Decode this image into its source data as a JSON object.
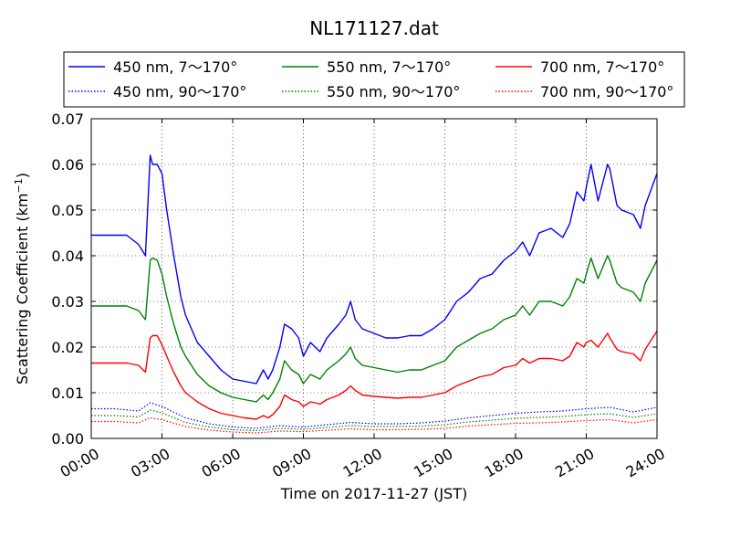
{
  "chart_data": {
    "type": "line",
    "title": "NL171127.dat",
    "xlabel": "Time on 2017-11-27 (JST)",
    "ylabel_main": "Scattering Coefficient (km",
    "ylabel_sup": "−1",
    "ylabel_close": ")",
    "x_unit": "hours",
    "xlim": [
      0,
      24
    ],
    "ylim": [
      0,
      0.07
    ],
    "grid": true,
    "legend_placement": "top",
    "x_ticks": [
      {
        "value": 0,
        "label": "00:00"
      },
      {
        "value": 3,
        "label": "03:00"
      },
      {
        "value": 6,
        "label": "06:00"
      },
      {
        "value": 9,
        "label": "09:00"
      },
      {
        "value": 12,
        "label": "12:00"
      },
      {
        "value": 15,
        "label": "15:00"
      },
      {
        "value": 18,
        "label": "18:00"
      },
      {
        "value": 21,
        "label": "21:00"
      },
      {
        "value": 24,
        "label": "24:00"
      }
    ],
    "y_ticks": [
      {
        "value": 0.0,
        "label": "0.00"
      },
      {
        "value": 0.01,
        "label": "0.01"
      },
      {
        "value": 0.02,
        "label": "0.02"
      },
      {
        "value": 0.03,
        "label": "0.03"
      },
      {
        "value": 0.04,
        "label": "0.04"
      },
      {
        "value": 0.05,
        "label": "0.05"
      },
      {
        "value": 0.06,
        "label": "0.06"
      },
      {
        "value": 0.07,
        "label": "0.07"
      }
    ],
    "series": [
      {
        "name": "450 nm, 7～170°",
        "color": "#0000ff",
        "style": "solid",
        "x": [
          0,
          0.5,
          1,
          1.5,
          2,
          2.3,
          2.5,
          2.6,
          2.8,
          3,
          3.2,
          3.5,
          3.8,
          4,
          4.5,
          5,
          5.5,
          6,
          6.5,
          7,
          7.3,
          7.5,
          7.7,
          8,
          8.2,
          8.5,
          8.8,
          9,
          9.3,
          9.5,
          9.7,
          10,
          10.5,
          10.8,
          11,
          11.2,
          11.5,
          12,
          12.5,
          13,
          13.5,
          14,
          14.5,
          15,
          15.5,
          16,
          16.5,
          17,
          17.5,
          18,
          18.3,
          18.6,
          19,
          19.5,
          20,
          20.3,
          20.6,
          20.9,
          21,
          21.2,
          21.5,
          21.9,
          22,
          22.3,
          22.5,
          23,
          23.3,
          23.5,
          24
        ],
        "y": [
          0.0445,
          0.0445,
          0.0445,
          0.0445,
          0.0425,
          0.04,
          0.062,
          0.06,
          0.06,
          0.058,
          0.05,
          0.04,
          0.031,
          0.027,
          0.021,
          0.018,
          0.015,
          0.013,
          0.0125,
          0.012,
          0.015,
          0.013,
          0.015,
          0.02,
          0.025,
          0.024,
          0.022,
          0.018,
          0.021,
          0.02,
          0.019,
          0.022,
          0.025,
          0.027,
          0.03,
          0.026,
          0.024,
          0.023,
          0.022,
          0.022,
          0.0225,
          0.0225,
          0.024,
          0.026,
          0.03,
          0.032,
          0.035,
          0.036,
          0.039,
          0.041,
          0.043,
          0.04,
          0.045,
          0.046,
          0.044,
          0.047,
          0.054,
          0.052,
          0.055,
          0.06,
          0.052,
          0.06,
          0.059,
          0.051,
          0.05,
          0.049,
          0.046,
          0.051,
          0.058
        ]
      },
      {
        "name": "550 nm, 7～170°",
        "color": "#008000",
        "style": "solid",
        "x": [
          0,
          0.5,
          1,
          1.5,
          2,
          2.3,
          2.5,
          2.6,
          2.8,
          3,
          3.2,
          3.5,
          3.8,
          4,
          4.5,
          5,
          5.5,
          6,
          6.5,
          7,
          7.3,
          7.5,
          7.7,
          8,
          8.2,
          8.5,
          8.8,
          9,
          9.3,
          9.5,
          9.7,
          10,
          10.5,
          10.8,
          11,
          11.2,
          11.5,
          12,
          12.5,
          13,
          13.5,
          14,
          14.5,
          15,
          15.5,
          16,
          16.5,
          17,
          17.5,
          18,
          18.3,
          18.6,
          19,
          19.5,
          20,
          20.3,
          20.6,
          20.9,
          21,
          21.2,
          21.5,
          21.9,
          22,
          22.3,
          22.5,
          23,
          23.3,
          23.5,
          24
        ],
        "y": [
          0.029,
          0.029,
          0.029,
          0.029,
          0.028,
          0.026,
          0.039,
          0.0395,
          0.039,
          0.036,
          0.031,
          0.025,
          0.02,
          0.018,
          0.014,
          0.0115,
          0.01,
          0.009,
          0.0085,
          0.008,
          0.0095,
          0.0085,
          0.01,
          0.013,
          0.017,
          0.015,
          0.014,
          0.012,
          0.014,
          0.0135,
          0.013,
          0.015,
          0.017,
          0.0185,
          0.02,
          0.0175,
          0.016,
          0.0155,
          0.015,
          0.0145,
          0.015,
          0.015,
          0.016,
          0.017,
          0.02,
          0.0215,
          0.023,
          0.024,
          0.026,
          0.027,
          0.029,
          0.027,
          0.03,
          0.03,
          0.029,
          0.031,
          0.035,
          0.034,
          0.036,
          0.0395,
          0.035,
          0.04,
          0.039,
          0.034,
          0.033,
          0.032,
          0.03,
          0.034,
          0.039
        ]
      },
      {
        "name": "700 nm, 7～170°",
        "color": "#ff0000",
        "style": "solid",
        "x": [
          0,
          0.5,
          1,
          1.5,
          2,
          2.3,
          2.5,
          2.6,
          2.8,
          3,
          3.2,
          3.5,
          3.8,
          4,
          4.5,
          5,
          5.5,
          6,
          6.5,
          7,
          7.3,
          7.5,
          7.7,
          8,
          8.2,
          8.5,
          8.8,
          9,
          9.3,
          9.5,
          9.7,
          10,
          10.5,
          10.8,
          11,
          11.2,
          11.5,
          12,
          12.5,
          13,
          13.5,
          14,
          14.5,
          15,
          15.5,
          16,
          16.5,
          17,
          17.5,
          18,
          18.3,
          18.6,
          19,
          19.5,
          20,
          20.3,
          20.6,
          20.9,
          21,
          21.2,
          21.5,
          21.9,
          22,
          22.3,
          22.5,
          23,
          23.3,
          23.5,
          24
        ],
        "y": [
          0.0165,
          0.0165,
          0.0165,
          0.0165,
          0.016,
          0.0145,
          0.022,
          0.0225,
          0.0225,
          0.0205,
          0.018,
          0.0145,
          0.0115,
          0.01,
          0.008,
          0.0065,
          0.0055,
          0.005,
          0.0045,
          0.0042,
          0.005,
          0.0045,
          0.0052,
          0.007,
          0.0095,
          0.0085,
          0.008,
          0.007,
          0.008,
          0.0078,
          0.0075,
          0.0085,
          0.0095,
          0.0105,
          0.0115,
          0.0105,
          0.0095,
          0.0092,
          0.009,
          0.0088,
          0.009,
          0.009,
          0.0095,
          0.01,
          0.0115,
          0.0125,
          0.0135,
          0.014,
          0.0155,
          0.016,
          0.0175,
          0.0165,
          0.0175,
          0.0175,
          0.017,
          0.018,
          0.021,
          0.02,
          0.021,
          0.0215,
          0.02,
          0.023,
          0.022,
          0.0195,
          0.019,
          0.0185,
          0.017,
          0.0195,
          0.0235
        ]
      },
      {
        "name": "450 nm, 90～170°",
        "color": "#0000ff",
        "style": "dotted",
        "x": [
          0,
          1,
          2,
          2.5,
          3,
          4,
          5,
          6,
          7,
          8,
          9,
          10,
          11,
          12,
          13,
          14,
          15,
          16,
          17,
          18,
          19,
          20,
          21,
          22,
          23,
          24
        ],
        "y": [
          0.0065,
          0.0065,
          0.006,
          0.0078,
          0.007,
          0.0045,
          0.0032,
          0.0025,
          0.0022,
          0.0028,
          0.0025,
          0.003,
          0.0035,
          0.0032,
          0.0032,
          0.0034,
          0.0038,
          0.0045,
          0.005,
          0.0055,
          0.0058,
          0.006,
          0.0065,
          0.0068,
          0.0058,
          0.0068
        ]
      },
      {
        "name": "550 nm, 90～170°",
        "color": "#008000",
        "style": "dotted",
        "x": [
          0,
          1,
          2,
          2.5,
          3,
          4,
          5,
          6,
          7,
          8,
          9,
          10,
          11,
          12,
          13,
          14,
          15,
          16,
          17,
          18,
          19,
          20,
          21,
          22,
          23,
          24
        ],
        "y": [
          0.005,
          0.005,
          0.0047,
          0.0062,
          0.0056,
          0.0035,
          0.0025,
          0.0019,
          0.0017,
          0.0022,
          0.002,
          0.0024,
          0.0028,
          0.0026,
          0.0026,
          0.0027,
          0.003,
          0.0036,
          0.004,
          0.0044,
          0.0046,
          0.0048,
          0.0052,
          0.0054,
          0.0046,
          0.0054
        ]
      },
      {
        "name": "700 nm, 90～170°",
        "color": "#ff0000",
        "style": "dotted",
        "x": [
          0,
          1,
          2,
          2.5,
          3,
          4,
          5,
          6,
          7,
          8,
          9,
          10,
          11,
          12,
          13,
          14,
          15,
          16,
          17,
          18,
          19,
          20,
          21,
          22,
          23,
          24
        ],
        "y": [
          0.0037,
          0.0037,
          0.0034,
          0.0045,
          0.0041,
          0.0026,
          0.0018,
          0.0014,
          0.0012,
          0.0016,
          0.0015,
          0.0018,
          0.0021,
          0.0019,
          0.0019,
          0.002,
          0.0022,
          0.0027,
          0.003,
          0.0033,
          0.0034,
          0.0036,
          0.0039,
          0.0041,
          0.0034,
          0.0041
        ]
      }
    ],
    "legend_order": [
      0,
      1,
      2,
      3,
      4,
      5
    ]
  }
}
